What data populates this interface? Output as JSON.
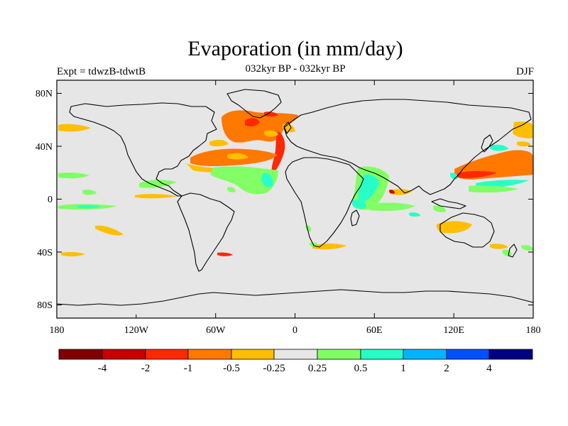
{
  "title": "Evaporation (in mm/day)",
  "left_label": "Expt = tdwzB-tdwtB",
  "center_label": "032kyr BP - 032kyr BP",
  "right_label": "DJF",
  "map": {
    "land_color": "#e6e6e6",
    "lon_ticks": [
      "180",
      "120W",
      "60W",
      "0",
      "60E",
      "120E",
      "180"
    ],
    "lat_ticks": [
      "80N",
      "40N",
      "0",
      "40S",
      "80S"
    ]
  },
  "colorbar": {
    "colors": [
      "#800000",
      "#c80000",
      "#ff2800",
      "#ff7800",
      "#ffbe00",
      "#e6e6e6",
      "#82ff64",
      "#28ffc8",
      "#00b4ff",
      "#0050ff",
      "#000082"
    ],
    "labels": [
      "-4",
      "-2",
      "-1",
      "-0.5",
      "-0.25",
      "0.25",
      "0.5",
      "1",
      "2",
      "4"
    ]
  }
}
